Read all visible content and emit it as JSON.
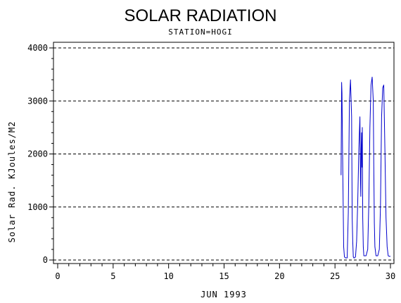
{
  "chart_data": {
    "type": "line",
    "title": "SOLAR RADIATION",
    "subtitle": "STATION=HOGI",
    "xlabel": "JUN 1993",
    "ylabel": "Solar Rad. KJoules/M2",
    "xlim": [
      0,
      30
    ],
    "ylim": [
      0,
      4000
    ],
    "x_ticks": [
      0,
      5,
      10,
      15,
      20,
      25,
      30
    ],
    "y_ticks": [
      0,
      1000,
      2000,
      3000,
      4000
    ],
    "grid": "horizontal dashed",
    "series": [
      {
        "color": "#0000cc",
        "x": [
          25.55,
          25.6,
          25.63,
          25.68,
          25.72,
          25.78,
          25.85,
          25.95,
          26.1,
          26.2,
          26.3,
          26.4,
          26.5,
          26.55,
          26.6,
          26.65,
          26.7,
          26.75,
          26.85,
          26.95,
          27.05,
          27.15,
          27.25,
          27.3,
          27.33,
          27.36,
          27.4,
          27.43,
          27.46,
          27.5,
          27.55,
          27.6,
          27.7,
          27.8,
          27.95,
          28.05,
          28.15,
          28.25,
          28.35,
          28.45,
          28.5,
          28.55,
          28.6,
          28.7,
          28.85,
          29.0,
          29.1,
          29.2,
          29.3,
          29.4,
          29.5,
          29.6,
          29.7,
          29.8,
          29.9,
          30.0
        ],
        "y": [
          1600,
          3350,
          3150,
          2100,
          1400,
          250,
          60,
          40,
          40,
          900,
          3000,
          3400,
          2700,
          800,
          350,
          60,
          40,
          40,
          60,
          350,
          1100,
          2100,
          2700,
          1500,
          1200,
          2100,
          2400,
          1750,
          2500,
          800,
          250,
          80,
          80,
          80,
          200,
          1100,
          2500,
          3300,
          3450,
          3000,
          1800,
          700,
          250,
          80,
          80,
          200,
          1000,
          2700,
          3250,
          3300,
          2100,
          800,
          250,
          80,
          70,
          70
        ]
      }
    ]
  }
}
